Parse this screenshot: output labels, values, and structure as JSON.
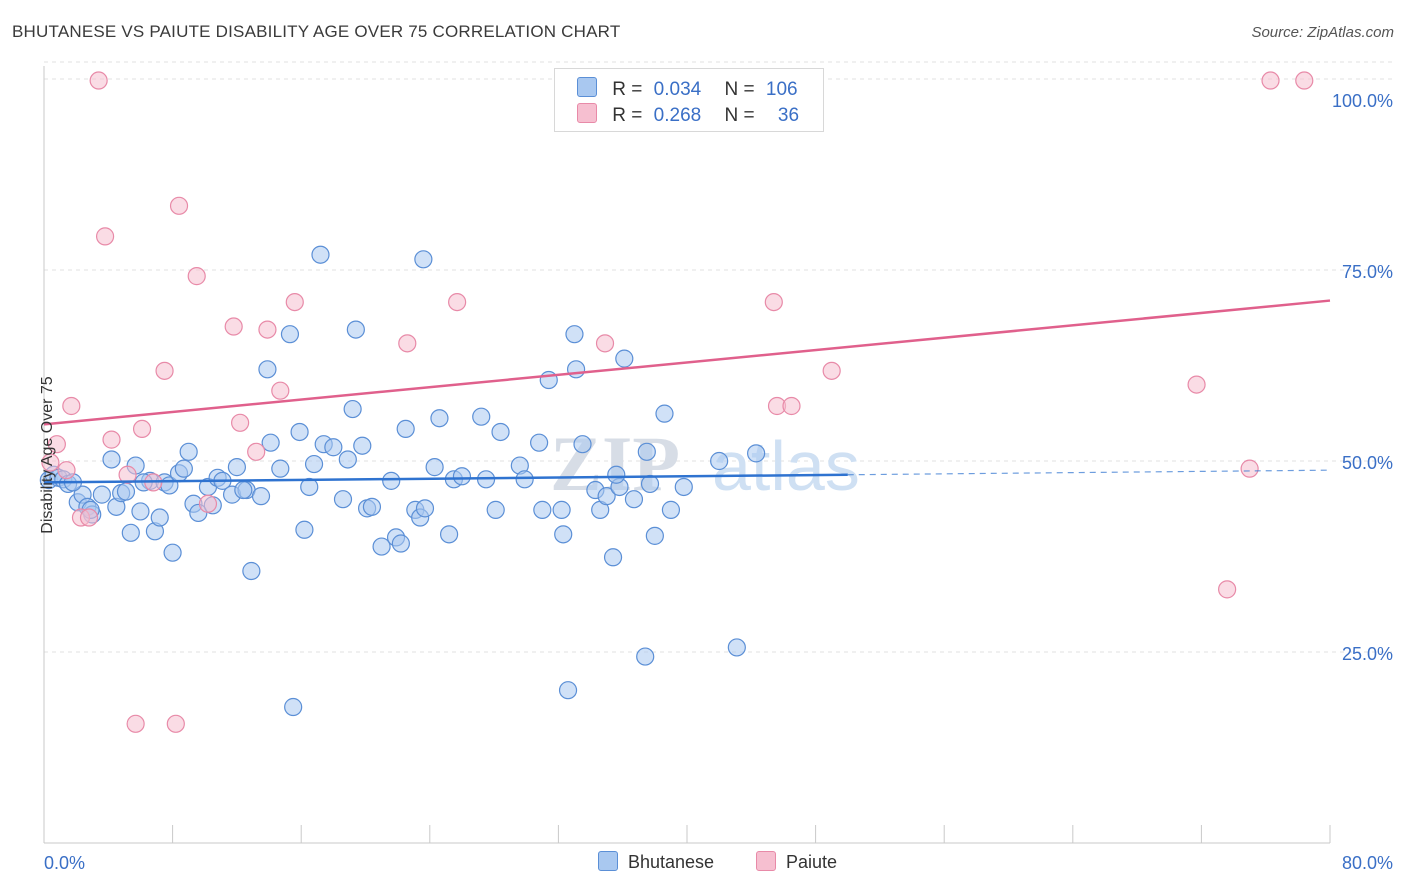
{
  "title": "BHUTANESE VS PAIUTE DISABILITY AGE OVER 75 CORRELATION CHART",
  "source": "Source: ZipAtlas.com",
  "watermark": "ZIPatlas",
  "legend": {
    "rows": [
      {
        "r_label": "R =",
        "r_value": "0.034",
        "n_label": "N =",
        "n_value": "106"
      },
      {
        "r_label": "R =",
        "r_value": "0.268",
        "n_label": "N =",
        "n_value": "36"
      }
    ]
  },
  "colors": {
    "blue_fill": "#a9c8f0",
    "blue_stroke": "#5b8fd6",
    "blue_line": "#2f73d0",
    "pink_fill": "#f6bfd0",
    "pink_stroke": "#e88aa8",
    "pink_line": "#e0608c",
    "tick_label": "#3a6fc6",
    "grid": "#e2e2e2"
  },
  "chart_data": {
    "type": "scatter",
    "title": "BHUTANESE VS PAIUTE DISABILITY AGE OVER 75 CORRELATION CHART",
    "xlabel": "",
    "ylabel": "Disability Age Over 75",
    "xlim": [
      0,
      80
    ],
    "ylim": [
      0,
      105
    ],
    "x_tick_labels": [
      "0.0%",
      "80.0%"
    ],
    "y_ticks": [
      25,
      50,
      75,
      100
    ],
    "y_tick_labels": [
      "25.0%",
      "50.0%",
      "75.0%",
      "100.0%"
    ],
    "grid": true,
    "legend_position": "bottom-center",
    "series": [
      {
        "name": "Bhutanese",
        "r": 0.034,
        "n": 106,
        "trend": {
          "x0": 0,
          "y0": 47.2,
          "x1": 50,
          "y1": 48.2,
          "dashed_to": 80,
          "dashed_y": 48.8
        },
        "points": [
          [
            0.3,
            47.5
          ],
          [
            0.6,
            48.2
          ],
          [
            0.9,
            47.8
          ],
          [
            1.2,
            47.6
          ],
          [
            1.5,
            47.0
          ],
          [
            2.1,
            44.6
          ],
          [
            2.4,
            45.6
          ],
          [
            2.7,
            44.0
          ],
          [
            3.0,
            43.0
          ],
          [
            3.6,
            45.6
          ],
          [
            4.2,
            50.2
          ],
          [
            4.5,
            44.0
          ],
          [
            4.8,
            45.8
          ],
          [
            5.1,
            46.0
          ],
          [
            5.4,
            40.6
          ],
          [
            5.7,
            49.4
          ],
          [
            6.0,
            43.4
          ],
          [
            6.6,
            47.4
          ],
          [
            6.9,
            40.8
          ],
          [
            7.2,
            42.6
          ],
          [
            7.5,
            47.2
          ],
          [
            7.8,
            46.8
          ],
          [
            8.4,
            48.4
          ],
          [
            8.7,
            49.0
          ],
          [
            9.0,
            51.2
          ],
          [
            9.3,
            44.4
          ],
          [
            9.6,
            43.2
          ],
          [
            10.2,
            46.6
          ],
          [
            10.8,
            47.8
          ],
          [
            11.1,
            47.4
          ],
          [
            11.7,
            45.6
          ],
          [
            12.0,
            49.2
          ],
          [
            12.6,
            46.2
          ],
          [
            12.9,
            35.6
          ],
          [
            13.5,
            45.4
          ],
          [
            14.1,
            52.4
          ],
          [
            14.7,
            49.0
          ],
          [
            15.3,
            66.6
          ],
          [
            15.9,
            53.8
          ],
          [
            16.2,
            41.0
          ],
          [
            16.5,
            46.6
          ],
          [
            16.8,
            49.6
          ],
          [
            17.4,
            52.2
          ],
          [
            18.0,
            51.8
          ],
          [
            18.6,
            45.0
          ],
          [
            18.9,
            50.2
          ],
          [
            19.2,
            56.8
          ],
          [
            19.8,
            52.0
          ],
          [
            20.1,
            43.8
          ],
          [
            20.4,
            44.0
          ],
          [
            21.0,
            38.8
          ],
          [
            21.6,
            47.4
          ],
          [
            21.9,
            40.0
          ],
          [
            22.2,
            39.2
          ],
          [
            22.5,
            54.2
          ],
          [
            23.1,
            43.6
          ],
          [
            23.4,
            42.6
          ],
          [
            23.7,
            43.8
          ],
          [
            24.3,
            49.2
          ],
          [
            24.6,
            55.6
          ],
          [
            25.2,
            40.4
          ],
          [
            25.5,
            47.6
          ],
          [
            15.5,
            17.8
          ],
          [
            17.2,
            77.0
          ],
          [
            19.4,
            67.2
          ],
          [
            23.6,
            76.4
          ],
          [
            13.9,
            62.0
          ],
          [
            27.2,
            55.8
          ],
          [
            27.5,
            47.6
          ],
          [
            28.1,
            43.6
          ],
          [
            28.4,
            53.8
          ],
          [
            29.6,
            49.4
          ],
          [
            29.9,
            47.6
          ],
          [
            30.8,
            52.4
          ],
          [
            31.0,
            43.6
          ],
          [
            31.4,
            60.6
          ],
          [
            32.2,
            43.6
          ],
          [
            32.3,
            40.4
          ],
          [
            33.1,
            62.0
          ],
          [
            33.5,
            52.2
          ],
          [
            34.3,
            46.2
          ],
          [
            34.6,
            43.6
          ],
          [
            35.0,
            45.4
          ],
          [
            35.4,
            37.4
          ],
          [
            35.8,
            46.6
          ],
          [
            36.7,
            45.0
          ],
          [
            37.5,
            51.2
          ],
          [
            37.7,
            47.0
          ],
          [
            38.0,
            40.2
          ],
          [
            38.6,
            56.2
          ],
          [
            39.0,
            43.6
          ],
          [
            39.8,
            46.6
          ],
          [
            36.1,
            63.4
          ],
          [
            32.6,
            20.0
          ],
          [
            37.4,
            24.4
          ],
          [
            43.1,
            25.6
          ],
          [
            42.0,
            50.0
          ],
          [
            44.3,
            51.0
          ],
          [
            33.0,
            66.6
          ],
          [
            35.6,
            48.2
          ],
          [
            12.4,
            46.2
          ],
          [
            6.2,
            47.2
          ],
          [
            1.8,
            47.2
          ],
          [
            2.9,
            43.6
          ],
          [
            10.5,
            44.2
          ],
          [
            8.0,
            38.0
          ],
          [
            26.0,
            48.0
          ]
        ]
      },
      {
        "name": "Paiute",
        "r": 0.268,
        "n": 36,
        "trend": {
          "x0": 0,
          "y0": 54.8,
          "x1": 80,
          "y1": 71.0
        },
        "points": [
          [
            3.4,
            99.8
          ],
          [
            76.3,
            99.8
          ],
          [
            78.4,
            99.8
          ],
          [
            8.4,
            83.4
          ],
          [
            3.8,
            79.4
          ],
          [
            9.5,
            74.2
          ],
          [
            15.6,
            70.8
          ],
          [
            25.7,
            70.8
          ],
          [
            45.4,
            70.8
          ],
          [
            11.8,
            67.6
          ],
          [
            13.9,
            67.2
          ],
          [
            22.6,
            65.4
          ],
          [
            34.9,
            65.4
          ],
          [
            7.5,
            61.8
          ],
          [
            49.0,
            61.8
          ],
          [
            71.7,
            60.0
          ],
          [
            14.7,
            59.2
          ],
          [
            1.7,
            57.2
          ],
          [
            45.6,
            57.2
          ],
          [
            46.5,
            57.2
          ],
          [
            12.2,
            55.0
          ],
          [
            6.1,
            54.2
          ],
          [
            4.2,
            52.8
          ],
          [
            0.8,
            52.2
          ],
          [
            13.2,
            51.2
          ],
          [
            0.4,
            49.8
          ],
          [
            1.4,
            48.8
          ],
          [
            5.2,
            48.2
          ],
          [
            6.8,
            47.2
          ],
          [
            10.2,
            44.4
          ],
          [
            2.3,
            42.6
          ],
          [
            2.8,
            42.6
          ],
          [
            75.0,
            49.0
          ],
          [
            73.6,
            33.2
          ],
          [
            5.7,
            15.6
          ],
          [
            8.2,
            15.6
          ]
        ]
      }
    ]
  },
  "x_axis": {
    "left_label": "0.0%",
    "right_label": "80.0%"
  },
  "bottom_legend": {
    "items": [
      {
        "label": "Bhutanese"
      },
      {
        "label": "Paiute"
      }
    ]
  }
}
